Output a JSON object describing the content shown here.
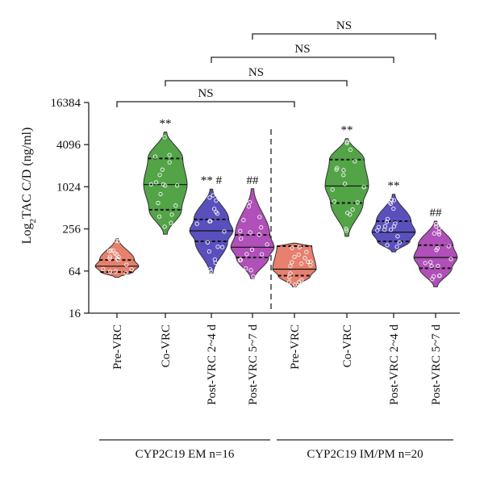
{
  "chart_data": {
    "type": "violin",
    "ylabel_prefix": "Log",
    "ylabel_sub": "2",
    "ylabel_rest": "TAC C/D (ng/ml)",
    "y_scale": "log2",
    "ylim": [
      16,
      16384
    ],
    "yticks": [
      "16",
      "64",
      "256",
      "1024",
      "4096",
      "16384"
    ],
    "grid": false,
    "colors": {
      "Pre-VRC": "#e8806e",
      "Co-VRC": "#52a447",
      "Post-VRC 2~4 d": "#5a50bd",
      "Post-VRC 5~7 d": "#b050b8"
    },
    "groups": [
      {
        "label": "CYP2C19 EM n=16"
      },
      {
        "label": "CYP2C19 IM/PM n=20"
      }
    ],
    "violins": [
      {
        "category": "Pre-VRC",
        "group": 0,
        "annotation": "",
        "min": 52,
        "q1": 62,
        "median": 75,
        "q3": 92,
        "max": 185
      },
      {
        "category": "Co-VRC",
        "group": 0,
        "annotation": "**",
        "min": 215,
        "q1": 480,
        "median": 1100,
        "q3": 2600,
        "max": 6200
      },
      {
        "category": "Post-VRC 2~4 d",
        "group": 0,
        "annotation": "** #",
        "min": 60,
        "q1": 170,
        "median": 240,
        "q3": 350,
        "max": 950
      },
      {
        "category": "Post-VRC 5~7 d",
        "group": 0,
        "annotation": "##",
        "min": 50,
        "q1": 100,
        "median": 140,
        "q3": 210,
        "max": 960
      },
      {
        "category": "Pre-VRC",
        "group": 1,
        "annotation": "",
        "min": 38,
        "q1": 55,
        "median": 68,
        "q3": 145,
        "max": 160
      },
      {
        "category": "Co-VRC",
        "group": 1,
        "annotation": "**",
        "min": 200,
        "q1": 600,
        "median": 1050,
        "q3": 2500,
        "max": 5000
      },
      {
        "category": "Post-VRC 2~4 d",
        "group": 1,
        "annotation": "**",
        "min": 120,
        "q1": 170,
        "median": 230,
        "q3": 330,
        "max": 800
      },
      {
        "category": "Post-VRC 5~7 d",
        "group": 1,
        "annotation": "##",
        "min": 38,
        "q1": 70,
        "median": 100,
        "q3": 150,
        "max": 330
      }
    ],
    "comparisons": [
      {
        "from": 0,
        "to": 4,
        "label": "NS"
      },
      {
        "from": 1,
        "to": 5,
        "label": "NS"
      },
      {
        "from": 2,
        "to": 6,
        "label": "NS"
      },
      {
        "from": 3,
        "to": 7,
        "label": "NS"
      }
    ]
  }
}
